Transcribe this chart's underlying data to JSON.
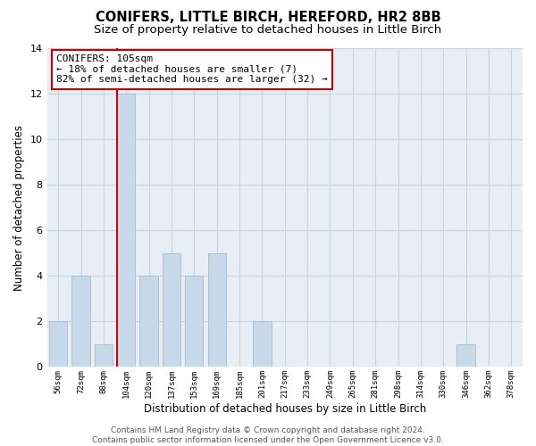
{
  "title1": "CONIFERS, LITTLE BIRCH, HEREFORD, HR2 8BB",
  "title2": "Size of property relative to detached houses in Little Birch",
  "xlabel": "Distribution of detached houses by size in Little Birch",
  "ylabel": "Number of detached properties",
  "categories": [
    "56sqm",
    "72sqm",
    "88sqm",
    "104sqm",
    "120sqm",
    "137sqm",
    "153sqm",
    "169sqm",
    "185sqm",
    "201sqm",
    "217sqm",
    "233sqm",
    "249sqm",
    "265sqm",
    "281sqm",
    "298sqm",
    "314sqm",
    "330sqm",
    "346sqm",
    "362sqm",
    "378sqm"
  ],
  "values": [
    2,
    4,
    1,
    12,
    4,
    5,
    4,
    5,
    0,
    2,
    0,
    0,
    0,
    0,
    0,
    0,
    0,
    0,
    1,
    0,
    0
  ],
  "bar_color": "#c8d9ea",
  "bar_edgecolor": "#9ab5cc",
  "highlight_index": 3,
  "highlight_line_color": "#cc0000",
  "annotation_text": "CONIFERS: 105sqm\n← 18% of detached houses are smaller (7)\n82% of semi-detached houses are larger (32) →",
  "annotation_box_edgecolor": "#cc0000",
  "ylim": [
    0,
    14
  ],
  "yticks": [
    0,
    2,
    4,
    6,
    8,
    10,
    12,
    14
  ],
  "grid_color": "#c8d4de",
  "background_color": "#e8eef5",
  "footer_text": "Contains HM Land Registry data © Crown copyright and database right 2024.\nContains public sector information licensed under the Open Government Licence v3.0.",
  "title1_fontsize": 10.5,
  "title2_fontsize": 9.5,
  "xlabel_fontsize": 8.5,
  "ylabel_fontsize": 8.5,
  "annotation_fontsize": 8,
  "footer_fontsize": 6.5,
  "bar_width": 0.8
}
